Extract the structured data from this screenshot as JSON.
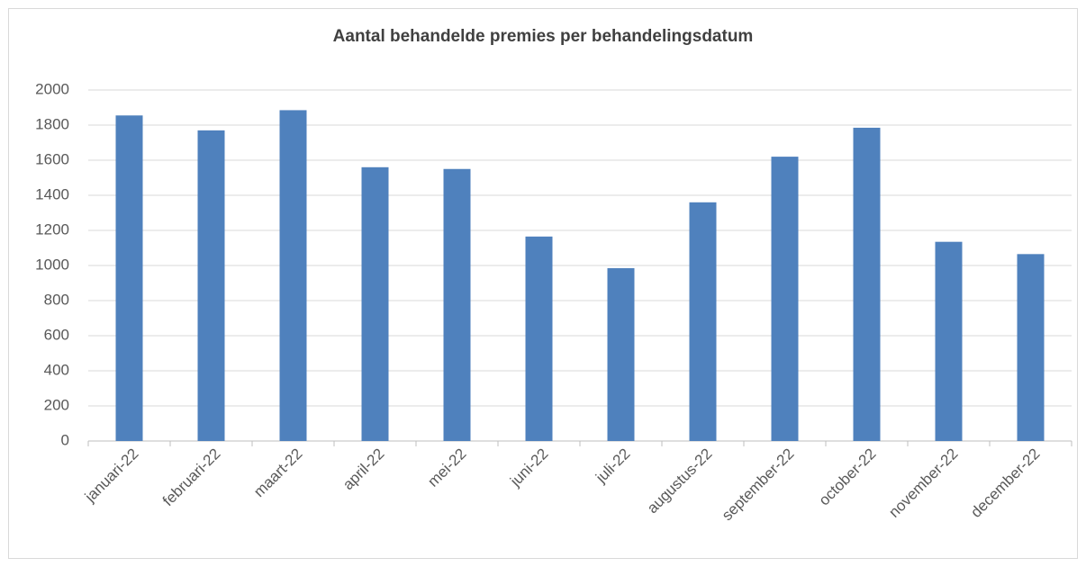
{
  "chart_data": {
    "type": "bar",
    "title": "Aantal behandelde premies per behandelingsdatum",
    "categories": [
      "januari-22",
      "februari-22",
      "maart-22",
      "april-22",
      "mei-22",
      "juni-22",
      "juli-22",
      "augustus-22",
      "september-22",
      "october-22",
      "november-22",
      "december-22"
    ],
    "values": [
      1855,
      1770,
      1885,
      1560,
      1550,
      1165,
      985,
      1360,
      1620,
      1785,
      1135,
      1065
    ],
    "color": "#4f81bd",
    "ylim": [
      0,
      2000
    ],
    "yticks": [
      0,
      200,
      400,
      600,
      800,
      1000,
      1200,
      1400,
      1600,
      1800,
      2000
    ],
    "grid": true
  }
}
